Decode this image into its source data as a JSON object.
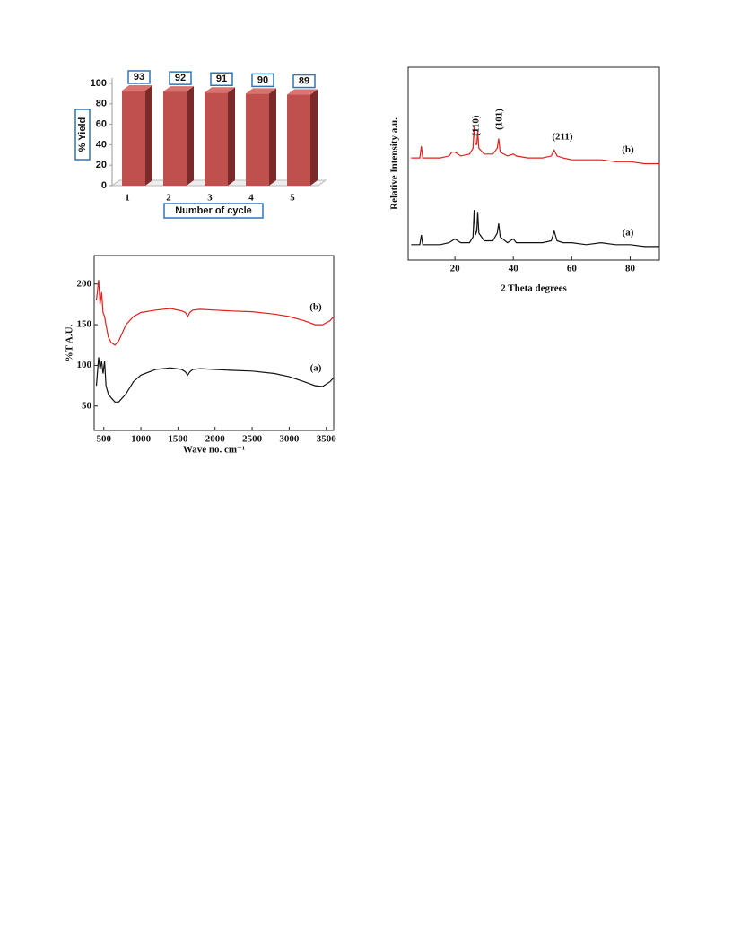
{
  "chart_data": [
    {
      "type": "bar3d",
      "categories": [
        "1",
        "2",
        "3",
        "4",
        "5"
      ],
      "values": [
        93,
        92,
        91,
        90,
        89
      ],
      "color": "#c0504d",
      "ylim": [
        0,
        100
      ],
      "yticks": [
        0,
        20,
        40,
        60,
        80,
        100
      ],
      "ylabel": "% Yield",
      "xlabel": "Number of cycle"
    },
    {
      "type": "line",
      "xlabel": "2 Theta degrees",
      "ylabel": "Relative  Intensity a.u.",
      "xlim": [
        4,
        90
      ],
      "xticks": [
        20,
        40,
        60,
        80
      ],
      "ylim": [
        0,
        100
      ],
      "annotations": [
        "(110)",
        "(101)",
        "(211)"
      ],
      "x": [
        5,
        8,
        8.5,
        9,
        15,
        18,
        19,
        20,
        22,
        25,
        26.2,
        26.6,
        27,
        27.5,
        27.8,
        28.2,
        30,
        33,
        34.5,
        35,
        35.5,
        38,
        40,
        41,
        45,
        50,
        53,
        54,
        55,
        57,
        60,
        65,
        70,
        75,
        80,
        85,
        90
      ],
      "series": [
        {
          "name": "(a)",
          "color": "#111111",
          "values": [
            8,
            8,
            13,
            8,
            8,
            9,
            10,
            11,
            9,
            9,
            12,
            26,
            13,
            15,
            25,
            14,
            10,
            10,
            14,
            19,
            12,
            9,
            11,
            9,
            9,
            9,
            10,
            15,
            10,
            9,
            9,
            8,
            9,
            8,
            8,
            7,
            7
          ]
        },
        {
          "name": "(b)",
          "color": "#e0201c",
          "values": [
            53,
            53,
            59,
            53,
            53,
            54,
            56,
            56,
            54,
            55,
            58,
            70,
            60,
            60,
            67,
            58,
            55,
            55,
            58,
            63,
            56,
            54,
            55,
            54,
            53,
            53,
            54,
            57,
            54,
            53,
            52,
            52,
            52,
            51,
            51,
            50,
            50
          ]
        }
      ]
    },
    {
      "type": "line",
      "xlabel": "Wave no. cm⁻¹",
      "ylabel": "%T A.U.",
      "xlim": [
        370,
        3600
      ],
      "xticks": [
        500,
        1000,
        1500,
        2000,
        2500,
        3000,
        3500
      ],
      "ylim": [
        20,
        235
      ],
      "yticks": [
        50,
        100,
        150,
        200
      ],
      "x": [
        400,
        430,
        450,
        470,
        490,
        510,
        530,
        560,
        600,
        650,
        700,
        800,
        900,
        1000,
        1200,
        1400,
        1550,
        1600,
        1630,
        1660,
        1700,
        1800,
        2000,
        2200,
        2500,
        2800,
        3000,
        3200,
        3350,
        3450,
        3550,
        3600
      ],
      "series": [
        {
          "name": "(a)",
          "color": "#111111",
          "values": [
            75,
            110,
            95,
            105,
            90,
            105,
            75,
            65,
            60,
            55,
            55,
            65,
            80,
            88,
            95,
            97,
            95,
            92,
            88,
            92,
            95,
            96,
            95,
            94,
            93,
            90,
            86,
            80,
            75,
            74,
            80,
            85
          ]
        },
        {
          "name": "(b)",
          "color": "#e0201c",
          "values": [
            180,
            205,
            175,
            190,
            165,
            160,
            150,
            135,
            128,
            125,
            130,
            150,
            160,
            165,
            168,
            170,
            167,
            165,
            160,
            165,
            168,
            169,
            168,
            167,
            166,
            163,
            160,
            155,
            150,
            150,
            155,
            160
          ]
        }
      ]
    }
  ]
}
